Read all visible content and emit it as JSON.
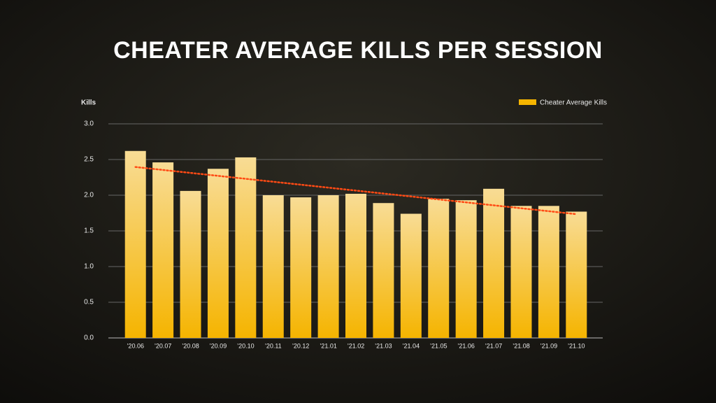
{
  "chart_data": {
    "type": "bar",
    "title": "CHEATER AVERAGE KILLS PER SESSION",
    "y_label": "Kills",
    "categories": [
      "’20.06",
      "’20.07",
      "’20.08",
      "’20.09",
      "’20.10",
      "’20.11",
      "’20.12",
      "’21.01",
      "’21.02",
      "’21.03",
      "’21.04",
      "’21.05",
      "’21.06",
      "’21.07",
      "’21.08",
      "’21.09",
      "’21.10"
    ],
    "series": [
      {
        "name": "Cheater Average Kills",
        "color": "#f5b400",
        "values": [
          2.62,
          2.46,
          2.06,
          2.37,
          2.53,
          2.0,
          1.97,
          2.0,
          2.02,
          1.89,
          1.74,
          1.95,
          1.93,
          2.09,
          1.85,
          1.85,
          1.77
        ]
      }
    ],
    "ylim": [
      0,
      3
    ],
    "yticks": [
      {
        "value": 0,
        "label": "0.0"
      },
      0.5,
      {
        "value": 1,
        "label": "1.0"
      },
      1.5,
      {
        "value": 2,
        "label": "2.0"
      },
      2.5,
      {
        "value": 3,
        "label": "3.0"
      }
    ],
    "grid": true,
    "legend": "top-right",
    "trendline": true,
    "trend_color": "#ff4a14"
  }
}
